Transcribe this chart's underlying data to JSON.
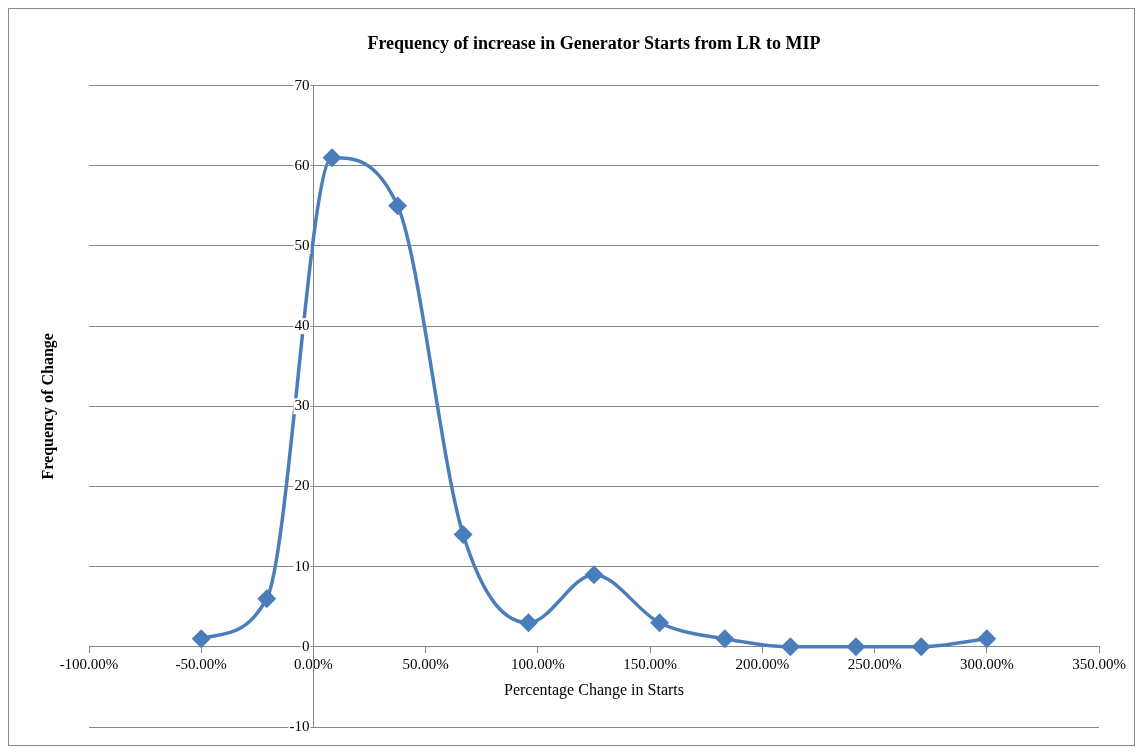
{
  "chart_data": {
    "type": "line",
    "title": "Frequency of increase in Generator Starts from LR to MIP",
    "xlabel": "Percentage Change in Starts",
    "ylabel": "Frequency of Change",
    "x": [
      -50,
      -20.8,
      8.3,
      37.5,
      66.7,
      95.8,
      125,
      154.2,
      183.3,
      212.5,
      241.7,
      270.8,
      300
    ],
    "series": [
      {
        "color": "#4a7ebb",
        "values": [
          1,
          6,
          61,
          55,
          14,
          3,
          9,
          3,
          1,
          0,
          0,
          0,
          1
        ]
      }
    ],
    "xlim": [
      -100,
      350
    ],
    "xticks": [
      {
        "value": -100,
        "label": "-100.00%"
      },
      {
        "value": -50,
        "label": "-50.00%"
      },
      {
        "value": 0,
        "label": "0.00%"
      },
      {
        "value": 50,
        "label": "50.00%"
      },
      {
        "value": 100,
        "label": "100.00%"
      },
      {
        "value": 150,
        "label": "150.00%"
      },
      {
        "value": 200,
        "label": "200.00%"
      },
      {
        "value": 250,
        "label": "250.00%"
      },
      {
        "value": 300,
        "label": "300.00%"
      },
      {
        "value": 350,
        "label": "350.00%"
      }
    ],
    "ylim": [
      -10,
      70
    ],
    "yticks": [
      -10,
      0,
      10,
      20,
      30,
      40,
      50,
      60,
      70
    ],
    "grid": "y",
    "legend": false,
    "marker": "diamond",
    "line_style": "solid"
  }
}
